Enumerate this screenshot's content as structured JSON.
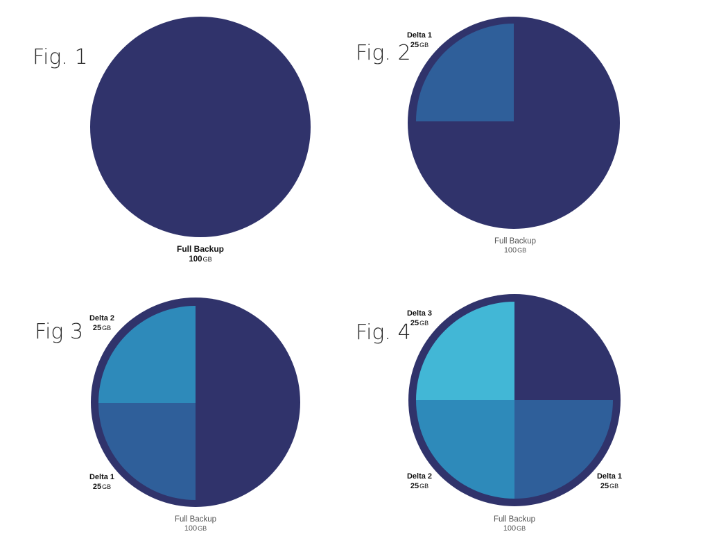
{
  "colors": {
    "full": "#30336b",
    "delta1": "#2f5f9a",
    "delta2": "#2e8aba",
    "delta3": "#42b7d6",
    "ring": "#30336b"
  },
  "figures": [
    {
      "title": "Fig. 1",
      "full_label": {
        "name": "Full Backup",
        "size": "100",
        "unit": "GB"
      }
    },
    {
      "title": "Fig. 2",
      "full_label": {
        "name": "Full Backup",
        "size": "100",
        "unit": "GB"
      },
      "deltas": [
        {
          "name": "Delta 1",
          "size": "25",
          "unit": "GB"
        }
      ]
    },
    {
      "title": "Fig 3",
      "full_label": {
        "name": "Full Backup",
        "size": "100",
        "unit": "GB"
      },
      "deltas": [
        {
          "name": "Delta 2",
          "size": "25",
          "unit": "GB"
        },
        {
          "name": "Delta 1",
          "size": "25",
          "unit": "GB"
        }
      ]
    },
    {
      "title": "Fig. 4",
      "full_label": {
        "name": "Full Backup",
        "size": "100",
        "unit": "GB"
      },
      "deltas": [
        {
          "name": "Delta 3",
          "size": "25",
          "unit": "GB"
        },
        {
          "name": "Delta 2",
          "size": "25",
          "unit": "GB"
        },
        {
          "name": "Delta 1",
          "size": "25",
          "unit": "GB"
        }
      ]
    }
  ]
}
